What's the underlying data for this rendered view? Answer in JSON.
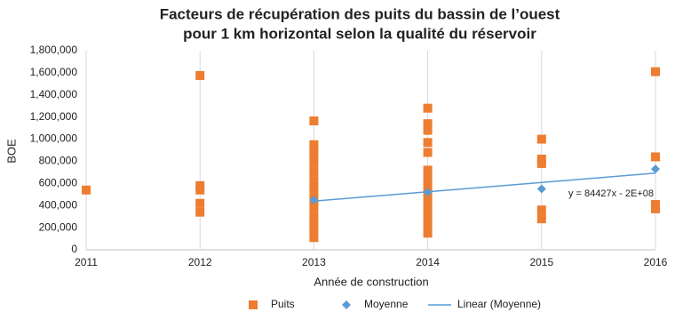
{
  "chart_data": {
    "type": "scatter",
    "title": [
      "Facteurs de récupération des puits du bassin de l’ouest",
      "pour 1 km horizontal selon la qualité du réservoir"
    ],
    "x_label": "Année de construction",
    "y_label": "BOE",
    "xlim": [
      2011,
      2016
    ],
    "xticks": [
      2011,
      2012,
      2013,
      2014,
      2015,
      2016
    ],
    "ylim": [
      0,
      1800000
    ],
    "yticks": [
      0,
      {
        "value": 200000,
        "label": "200,000"
      },
      {
        "value": 400000,
        "label": "400,000"
      },
      {
        "value": 600000,
        "label": "600,000"
      },
      {
        "value": 800000,
        "label": "800,000"
      },
      {
        "value": 1000000,
        "label": "1,000,000"
      },
      {
        "value": 1200000,
        "label": "1,200,000"
      },
      {
        "value": 1400000,
        "label": "1,400,000"
      },
      {
        "value": 1600000,
        "label": "1,600,000"
      },
      {
        "value": 1800000,
        "label": "1,800,000"
      }
    ],
    "grid": "x",
    "legend": "bottom",
    "series": [
      {
        "name": "Puits",
        "color": "#ed7d31",
        "marker": "square",
        "x": [
          2011,
          2012,
          2012,
          2012,
          2012,
          2012,
          2013,
          2013,
          2013,
          2013,
          2013,
          2013,
          2013,
          2013,
          2013,
          2013,
          2013,
          2013,
          2013,
          2013,
          2013,
          2014,
          2014,
          2014,
          2014,
          2014,
          2014,
          2014,
          2014,
          2014,
          2014,
          2014,
          2014,
          2014,
          2014,
          2014,
          2015,
          2015,
          2015,
          2015,
          2015,
          2016,
          2016,
          2016,
          2016
        ],
        "values": [
          540000,
          1575000,
          580000,
          540000,
          420000,
          340000,
          1165000,
          950000,
          900000,
          850000,
          780000,
          700000,
          620000,
          560000,
          500000,
          440000,
          380000,
          300000,
          240000,
          180000,
          110000,
          1280000,
          1140000,
          1080000,
          970000,
          880000,
          720000,
          650000,
          580000,
          520000,
          460000,
          400000,
          340000,
          280000,
          220000,
          150000,
          1000000,
          820000,
          780000,
          360000,
          280000,
          1610000,
          840000,
          410000,
          370000
        ]
      },
      {
        "name": "Moyenne",
        "color": "#5b9bd5",
        "marker": "diamond",
        "x": [
          2013,
          2014,
          2015,
          2016
        ],
        "values": [
          450000,
          520000,
          550000,
          730000
        ]
      },
      {
        "name": "Linear (Moyenne)",
        "color": "#5b9bd5",
        "marker": "line",
        "x": [
          2013,
          2016
        ],
        "values": [
          440000,
          693000
        ]
      }
    ],
    "annotations": [
      "y = 84427x - 2E+08"
    ]
  }
}
